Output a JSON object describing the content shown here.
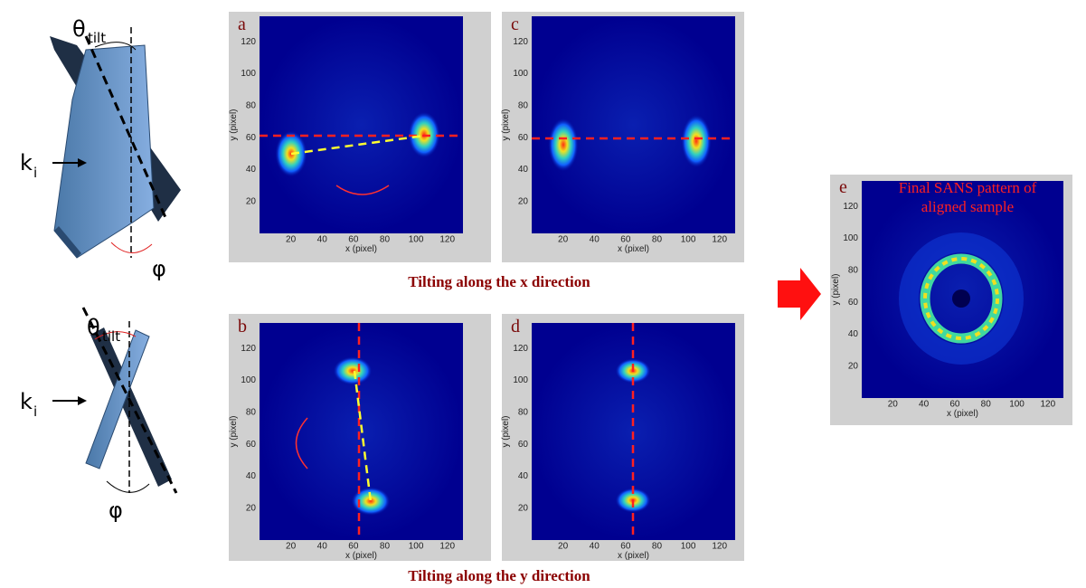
{
  "panels": [
    {
      "label": "a",
      "xlabel": "x (pixel)",
      "ylabel": "y (pixel)",
      "xticks": [
        20,
        40,
        60,
        80,
        100,
        120
      ],
      "yticks": [
        20,
        40,
        60,
        80,
        100,
        120
      ]
    },
    {
      "label": "c",
      "xlabel": "x (pixel)",
      "ylabel": "y (pixel)",
      "xticks": [
        20,
        40,
        60,
        80,
        100,
        120
      ],
      "yticks": [
        20,
        40,
        60,
        80,
        100,
        120
      ]
    },
    {
      "label": "b",
      "xlabel": "x (pixel)",
      "ylabel": "y (pixel)",
      "xticks": [
        20,
        40,
        60,
        80,
        100,
        120
      ],
      "yticks": [
        20,
        40,
        60,
        80,
        100,
        120
      ]
    },
    {
      "label": "d",
      "xlabel": "x (pixel)",
      "ylabel": "y (pixel)",
      "xticks": [
        20,
        40,
        60,
        80,
        100,
        120
      ],
      "yticks": [
        20,
        40,
        60,
        80,
        100,
        120
      ]
    },
    {
      "label": "e",
      "xlabel": "x (pixel)",
      "ylabel": "y (pixel)",
      "xticks": [
        20,
        40,
        60,
        80,
        100,
        120
      ],
      "yticks": [
        20,
        40,
        60,
        80,
        100,
        120
      ]
    }
  ],
  "e_title": [
    "Final SANS pattern of",
    "aligned sample"
  ],
  "captions": [
    "Tilting along the x direction",
    "Tilting along the y direction"
  ],
  "diagrams": [
    {
      "theta": "θ",
      "theta_sub": "tilt",
      "phi": "φ",
      "k": "k",
      "k_sub": "i"
    },
    {
      "theta": "θ",
      "theta_sub": "tilt",
      "phi": "φ",
      "k": "k",
      "k_sub": "i"
    }
  ]
}
